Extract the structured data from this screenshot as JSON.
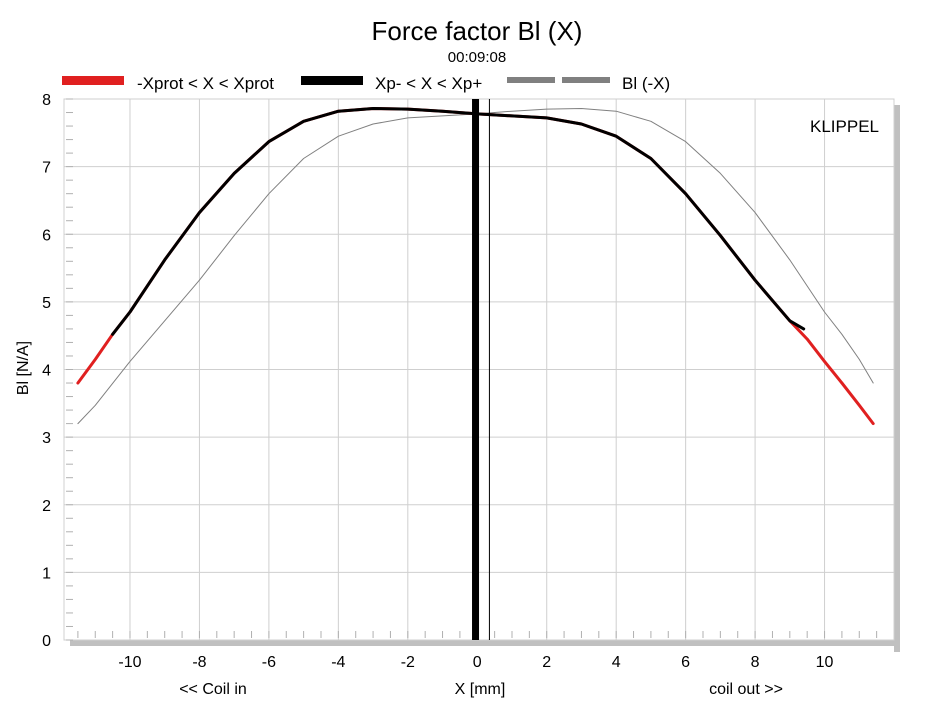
{
  "chart_data": {
    "type": "line",
    "title": "Force factor Bl (X)",
    "subtitle": "00:09:08",
    "brand": "KLIPPEL",
    "xlabel": "X [mm]",
    "xlabel_left": "<< Coil in",
    "xlabel_right": "coil out >>",
    "ylabel": "Bl [N/A]",
    "xlim": [
      -11.9,
      12.0
    ],
    "ylim": [
      0,
      8
    ],
    "xticks": [
      -10,
      -8,
      -6,
      -4,
      -2,
      0,
      2,
      4,
      6,
      8,
      10
    ],
    "yticks": [
      0,
      1,
      2,
      3,
      4,
      5,
      6,
      7,
      8
    ],
    "grid": true,
    "legend_position": "top",
    "legend": [
      {
        "label": "-Xprot < X < Xprot",
        "color": "#e02020"
      },
      {
        "label": "Xp- < X < Xp+",
        "color": "#000000"
      },
      {
        "label": "Bl (-X)",
        "color": "#808080"
      }
    ],
    "vertical_markers": [
      {
        "x": -0.05,
        "style": "thick",
        "color": "#000000"
      },
      {
        "x": 0.35,
        "style": "thin",
        "color": "#000000"
      }
    ],
    "series": [
      {
        "name": "-Xprot < X < Xprot",
        "color": "#e02020",
        "x": [
          -11.5,
          -11.0,
          -10.5,
          -10.0,
          -9.0,
          -8.0,
          -7.0,
          -6.0,
          -5.0,
          -4.0,
          -3.0,
          -2.0,
          -1.0,
          0.0,
          1.0,
          2.0,
          3.0,
          4.0,
          5.0,
          6.0,
          7.0,
          8.0,
          9.0,
          9.5,
          10.0,
          10.5,
          11.0,
          11.4
        ],
        "y": [
          3.8,
          4.15,
          4.52,
          4.85,
          5.62,
          6.32,
          6.9,
          7.37,
          7.67,
          7.82,
          7.86,
          7.85,
          7.82,
          7.78,
          7.75,
          7.72,
          7.63,
          7.45,
          7.12,
          6.6,
          5.98,
          5.32,
          4.72,
          4.45,
          4.12,
          3.8,
          3.47,
          3.2
        ]
      },
      {
        "name": "Xp- < X < Xp+",
        "color": "#000000",
        "x": [
          -10.5,
          -10.0,
          -9.0,
          -8.0,
          -7.0,
          -6.0,
          -5.0,
          -4.0,
          -3.0,
          -2.0,
          -1.0,
          0.0,
          1.0,
          2.0,
          3.0,
          4.0,
          5.0,
          6.0,
          7.0,
          8.0,
          9.0,
          9.4
        ],
        "y": [
          4.52,
          4.85,
          5.62,
          6.32,
          6.9,
          7.37,
          7.67,
          7.82,
          7.86,
          7.85,
          7.82,
          7.78,
          7.75,
          7.72,
          7.63,
          7.45,
          7.12,
          6.6,
          5.98,
          5.32,
          4.72,
          4.6
        ]
      },
      {
        "name": "Bl (-X)",
        "color": "#808080",
        "x": [
          -11.5,
          -11.0,
          -10.0,
          -9.0,
          -8.0,
          -7.0,
          -6.0,
          -5.0,
          -4.0,
          -3.0,
          -2.0,
          -1.0,
          0.0,
          1.0,
          2.0,
          3.0,
          4.0,
          5.0,
          6.0,
          7.0,
          8.0,
          9.0,
          10.0,
          10.5,
          11.0,
          11.4
        ],
        "y": [
          3.2,
          3.47,
          4.12,
          4.72,
          5.32,
          5.98,
          6.6,
          7.12,
          7.45,
          7.63,
          7.72,
          7.75,
          7.78,
          7.82,
          7.85,
          7.86,
          7.82,
          7.67,
          7.37,
          6.9,
          6.32,
          5.62,
          4.85,
          4.52,
          4.15,
          3.8
        ]
      }
    ]
  }
}
